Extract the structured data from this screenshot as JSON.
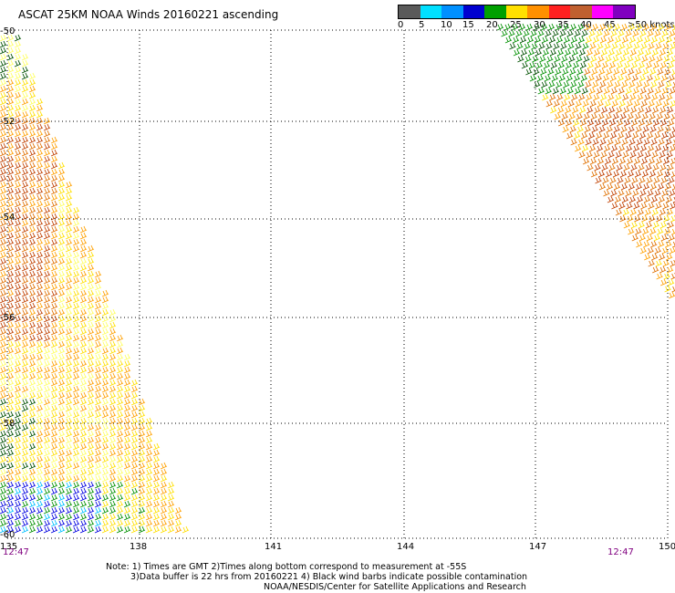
{
  "title": "ASCAT 25KM NOAA Winds 20160221 ascending",
  "legend": {
    "colors": [
      "#606060",
      "#a8a8a8",
      "#00e0ff",
      "#0080ff",
      "#0000e0",
      "#00a000",
      "#ffe000",
      "#ffa000",
      "#ff6000",
      "#ff2020",
      "#e00000",
      "#804000",
      "#c08060",
      "#ff00ff",
      "#c000ff",
      "#600080",
      "#ffffff"
    ],
    "labels": [
      "0",
      "5",
      "10",
      "15",
      "20",
      "25",
      "30",
      "35",
      "40",
      "45",
      ">50 knots"
    ]
  },
  "map": {
    "lat_labels": [
      "-50",
      "-52",
      "-54",
      "-56",
      "-58",
      "-60"
    ],
    "lon_labels": [
      "135",
      "138",
      "141",
      "144",
      "147",
      "150"
    ],
    "lat_range": [
      -60,
      -50
    ],
    "lon_range": [
      135,
      150
    ],
    "grid": true
  },
  "times": {
    "left": "12:47",
    "right": "12:47"
  },
  "notes": {
    "line1": "Note: 1) Times are GMT 2)Times along bottom correspond to measurement at -55S",
    "line2": "3)Data buffer is 22 hrs from 20160221 4) Black wind barbs indicate possible contamination",
    "line3": "NOAA/NESDIS/Center for Satellite Applications and Research"
  },
  "wind_colors": {
    "light_yellow": "#ffff60",
    "yellow": "#ffe000",
    "orange": "#ffa000",
    "dark_orange": "#e07000",
    "brown": "#c04000",
    "green": "#009000",
    "dark_green": "#005000",
    "blue": "#0000e0",
    "cyan": "#00c0ff"
  }
}
